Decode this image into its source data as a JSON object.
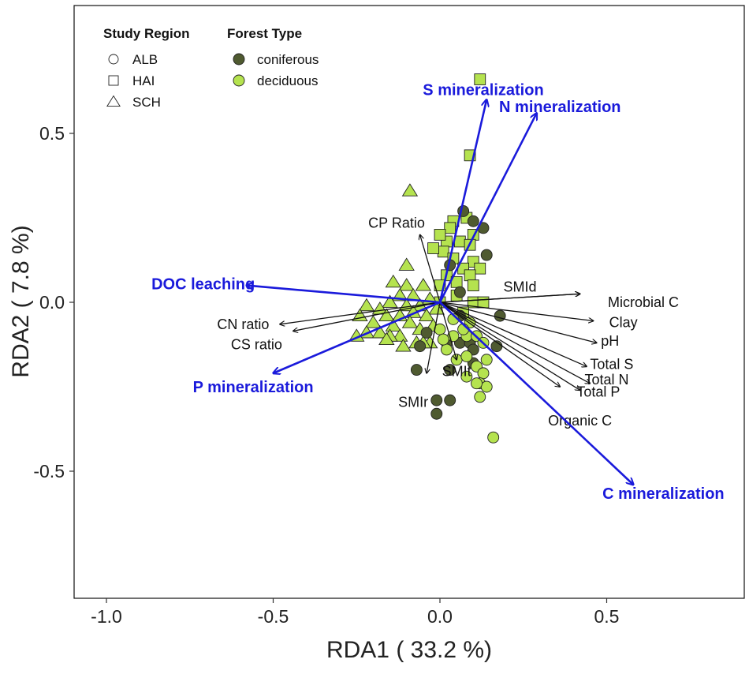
{
  "chart_data": {
    "type": "scatter",
    "subtype": "rda-biplot",
    "xlabel": "RDA1 ( 33.2 %)",
    "ylabel": "RDA2 ( 7.8 %)",
    "xlim": [
      -1.1,
      0.9
    ],
    "ylim": [
      -0.88,
      0.88
    ],
    "x_ticks": [
      {
        "value": -1.0,
        "label": "-1.0"
      },
      {
        "value": -0.5,
        "label": "-0.5"
      },
      {
        "value": 0.0,
        "label": "0.0"
      },
      {
        "value": 0.5,
        "label": "0.5"
      }
    ],
    "y_ticks": [
      {
        "value": 0.5,
        "label": "0.5"
      },
      {
        "value": 0.0,
        "label": "0.0"
      },
      {
        "value": -0.5,
        "label": "-0.5"
      }
    ],
    "legend": {
      "region_title": "Study Region",
      "regions": [
        {
          "shape": "circle",
          "label": "ALB"
        },
        {
          "shape": "square",
          "label": "HAI"
        },
        {
          "shape": "triangle",
          "label": "SCH"
        }
      ],
      "forest_title": "Forest Type",
      "forests": [
        {
          "key": "coniferous",
          "label": "coniferous",
          "color": "#4f5a30"
        },
        {
          "key": "deciduous",
          "label": "deciduous",
          "color": "#b5e34f"
        }
      ]
    },
    "response_arrows": [
      {
        "label": "S mineralization",
        "x": 0.14,
        "y": 0.6,
        "lx": 0.13,
        "ly": 0.63
      },
      {
        "label": "N mineralization",
        "x": 0.29,
        "y": 0.56,
        "lx": 0.36,
        "ly": 0.58
      },
      {
        "label": "DOC leaching",
        "x": -0.58,
        "y": 0.05,
        "lx": -0.71,
        "ly": 0.055
      },
      {
        "label": "P mineralization",
        "x": -0.5,
        "y": -0.21,
        "lx": -0.56,
        "ly": -0.25
      },
      {
        "label": "C mineralization",
        "x": 0.58,
        "y": -0.54,
        "lx": 0.67,
        "ly": -0.565
      }
    ],
    "explanatory_arrows": [
      {
        "label": "CP Ratio",
        "x": -0.06,
        "y": 0.2,
        "lx": -0.13,
        "ly": 0.235
      },
      {
        "label": "SMId",
        "x": 0.42,
        "y": 0.025,
        "lx": 0.24,
        "ly": 0.045
      },
      {
        "label": "Microbial C",
        "x": 0.42,
        "y": 0.025,
        "lx": 0.61,
        "ly": 0.0
      },
      {
        "label": "Clay",
        "x": 0.46,
        "y": -0.055,
        "lx": 0.55,
        "ly": -0.06
      },
      {
        "label": "pH",
        "x": 0.47,
        "y": -0.12,
        "lx": 0.51,
        "ly": -0.115
      },
      {
        "label": "Total S",
        "x": 0.44,
        "y": -0.19,
        "lx": 0.515,
        "ly": -0.183
      },
      {
        "label": "Total N",
        "x": 0.45,
        "y": -0.24,
        "lx": 0.5,
        "ly": -0.229
      },
      {
        "label": "Total P",
        "x": 0.42,
        "y": -0.26,
        "lx": 0.475,
        "ly": -0.265
      },
      {
        "label": "Organic C",
        "x": 0.36,
        "y": -0.25,
        "lx": 0.42,
        "ly": -0.35
      },
      {
        "label": "SMIr",
        "x": -0.04,
        "y": -0.21,
        "lx": -0.08,
        "ly": -0.295
      },
      {
        "label": "SMIt",
        "x": 0.05,
        "y": -0.17,
        "lx": 0.05,
        "ly": -0.205
      },
      {
        "label": "CN ratio",
        "x": -0.48,
        "y": -0.065,
        "lx": -0.59,
        "ly": -0.065
      },
      {
        "label": "CS ratio",
        "x": -0.44,
        "y": -0.085,
        "lx": -0.55,
        "ly": -0.125
      }
    ],
    "points": [
      {
        "x": 0.12,
        "y": 0.66,
        "s": "square",
        "f": "deciduous"
      },
      {
        "x": 0.09,
        "y": 0.435,
        "s": "square",
        "f": "deciduous"
      },
      {
        "x": -0.09,
        "y": 0.33,
        "s": "triangle",
        "f": "deciduous"
      },
      {
        "x": 0.04,
        "y": 0.24,
        "s": "square",
        "f": "deciduous"
      },
      {
        "x": 0.03,
        "y": 0.22,
        "s": "square",
        "f": "deciduous"
      },
      {
        "x": 0.08,
        "y": 0.25,
        "s": "square",
        "f": "deciduous"
      },
      {
        "x": 0.1,
        "y": 0.2,
        "s": "square",
        "f": "deciduous"
      },
      {
        "x": 0.06,
        "y": 0.18,
        "s": "square",
        "f": "deciduous"
      },
      {
        "x": 0.07,
        "y": 0.27,
        "s": "circle",
        "f": "coniferous"
      },
      {
        "x": 0.1,
        "y": 0.24,
        "s": "circle",
        "f": "coniferous"
      },
      {
        "x": 0.13,
        "y": 0.22,
        "s": "circle",
        "f": "coniferous"
      },
      {
        "x": 0.02,
        "y": 0.18,
        "s": "square",
        "f": "deciduous"
      },
      {
        "x": 0.01,
        "y": 0.15,
        "s": "square",
        "f": "deciduous"
      },
      {
        "x": 0.09,
        "y": 0.17,
        "s": "square",
        "f": "deciduous"
      },
      {
        "x": 0.04,
        "y": 0.13,
        "s": "square",
        "f": "deciduous"
      },
      {
        "x": 0.1,
        "y": 0.12,
        "s": "square",
        "f": "deciduous"
      },
      {
        "x": 0.07,
        "y": 0.1,
        "s": "square",
        "f": "deciduous"
      },
      {
        "x": 0.12,
        "y": 0.1,
        "s": "square",
        "f": "deciduous"
      },
      {
        "x": 0.02,
        "y": 0.08,
        "s": "square",
        "f": "deciduous"
      },
      {
        "x": 0.09,
        "y": 0.08,
        "s": "square",
        "f": "deciduous"
      },
      {
        "x": 0.05,
        "y": 0.06,
        "s": "square",
        "f": "deciduous"
      },
      {
        "x": 0.1,
        "y": 0.05,
        "s": "square",
        "f": "deciduous"
      },
      {
        "x": 0.0,
        "y": 0.05,
        "s": "square",
        "f": "deciduous"
      },
      {
        "x": 0.05,
        "y": 0.02,
        "s": "square",
        "f": "deciduous"
      },
      {
        "x": 0.1,
        "y": 0.0,
        "s": "square",
        "f": "deciduous"
      },
      {
        "x": 0.13,
        "y": 0.0,
        "s": "square",
        "f": "deciduous"
      },
      {
        "x": 0.0,
        "y": 0.0,
        "s": "square",
        "f": "deciduous"
      },
      {
        "x": 0.07,
        "y": -0.03,
        "s": "square",
        "f": "deciduous"
      },
      {
        "x": 0.03,
        "y": 0.11,
        "s": "circle",
        "f": "coniferous"
      },
      {
        "x": 0.06,
        "y": 0.03,
        "s": "circle",
        "f": "coniferous"
      },
      {
        "x": 0.14,
        "y": 0.14,
        "s": "circle",
        "f": "coniferous"
      },
      {
        "x": 0.0,
        "y": 0.2,
        "s": "square",
        "f": "deciduous"
      },
      {
        "x": -0.02,
        "y": 0.16,
        "s": "square",
        "f": "deciduous"
      },
      {
        "x": -0.1,
        "y": 0.11,
        "s": "triangle",
        "f": "deciduous"
      },
      {
        "x": -0.14,
        "y": 0.06,
        "s": "triangle",
        "f": "deciduous"
      },
      {
        "x": -0.1,
        "y": 0.05,
        "s": "triangle",
        "f": "deciduous"
      },
      {
        "x": -0.05,
        "y": 0.05,
        "s": "triangle",
        "f": "deciduous"
      },
      {
        "x": -0.12,
        "y": 0.02,
        "s": "triangle",
        "f": "deciduous"
      },
      {
        "x": -0.08,
        "y": 0.02,
        "s": "triangle",
        "f": "deciduous"
      },
      {
        "x": -0.03,
        "y": 0.01,
        "s": "triangle",
        "f": "deciduous"
      },
      {
        "x": -0.15,
        "y": 0.0,
        "s": "triangle",
        "f": "deciduous"
      },
      {
        "x": -0.22,
        "y": -0.01,
        "s": "triangle",
        "f": "deciduous"
      },
      {
        "x": -0.18,
        "y": -0.02,
        "s": "triangle",
        "f": "deciduous"
      },
      {
        "x": -0.1,
        "y": -0.01,
        "s": "triangle",
        "f": "deciduous"
      },
      {
        "x": -0.06,
        "y": -0.01,
        "s": "triangle",
        "f": "deciduous"
      },
      {
        "x": -0.01,
        "y": -0.02,
        "s": "triangle",
        "f": "deciduous"
      },
      {
        "x": -0.24,
        "y": -0.04,
        "s": "triangle",
        "f": "deciduous"
      },
      {
        "x": -0.16,
        "y": -0.04,
        "s": "triangle",
        "f": "deciduous"
      },
      {
        "x": -0.12,
        "y": -0.04,
        "s": "triangle",
        "f": "deciduous"
      },
      {
        "x": -0.08,
        "y": -0.03,
        "s": "triangle",
        "f": "deciduous"
      },
      {
        "x": -0.04,
        "y": -0.04,
        "s": "triangle",
        "f": "deciduous"
      },
      {
        "x": -0.2,
        "y": -0.06,
        "s": "triangle",
        "f": "deciduous"
      },
      {
        "x": -0.14,
        "y": -0.07,
        "s": "triangle",
        "f": "deciduous"
      },
      {
        "x": -0.09,
        "y": -0.06,
        "s": "triangle",
        "f": "deciduous"
      },
      {
        "x": -0.06,
        "y": -0.08,
        "s": "triangle",
        "f": "deciduous"
      },
      {
        "x": -0.02,
        "y": -0.07,
        "s": "triangle",
        "f": "deciduous"
      },
      {
        "x": -0.22,
        "y": -0.09,
        "s": "triangle",
        "f": "deciduous"
      },
      {
        "x": -0.18,
        "y": -0.09,
        "s": "triangle",
        "f": "deciduous"
      },
      {
        "x": -0.12,
        "y": -0.1,
        "s": "triangle",
        "f": "deciduous"
      },
      {
        "x": -0.25,
        "y": -0.1,
        "s": "triangle",
        "f": "deciduous"
      },
      {
        "x": -0.15,
        "y": -0.1,
        "s": "triangle",
        "f": "deciduous"
      },
      {
        "x": -0.07,
        "y": -0.12,
        "s": "triangle",
        "f": "deciduous"
      },
      {
        "x": -0.03,
        "y": -0.12,
        "s": "triangle",
        "f": "deciduous"
      },
      {
        "x": -0.16,
        "y": -0.11,
        "s": "triangle",
        "f": "deciduous"
      },
      {
        "x": -0.11,
        "y": -0.13,
        "s": "triangle",
        "f": "deciduous"
      },
      {
        "x": -0.05,
        "y": -0.12,
        "s": "triangle",
        "f": "deciduous"
      },
      {
        "x": -0.04,
        "y": -0.09,
        "s": "circle",
        "f": "coniferous"
      },
      {
        "x": -0.06,
        "y": -0.13,
        "s": "circle",
        "f": "coniferous"
      },
      {
        "x": -0.07,
        "y": -0.2,
        "s": "circle",
        "f": "coniferous"
      },
      {
        "x": 0.02,
        "y": -0.12,
        "s": "circle",
        "f": "coniferous"
      },
      {
        "x": 0.06,
        "y": -0.12,
        "s": "circle",
        "f": "coniferous"
      },
      {
        "x": 0.03,
        "y": -0.2,
        "s": "circle",
        "f": "coniferous"
      },
      {
        "x": 0.09,
        "y": -0.12,
        "s": "circle",
        "f": "coniferous"
      },
      {
        "x": 0.17,
        "y": -0.13,
        "s": "circle",
        "f": "coniferous"
      },
      {
        "x": 0.18,
        "y": -0.04,
        "s": "circle",
        "f": "coniferous"
      },
      {
        "x": 0.06,
        "y": -0.04,
        "s": "circle",
        "f": "coniferous"
      },
      {
        "x": 0.1,
        "y": -0.14,
        "s": "circle",
        "f": "coniferous"
      },
      {
        "x": 0.1,
        "y": -0.18,
        "s": "circle",
        "f": "coniferous"
      },
      {
        "x": -0.01,
        "y": -0.29,
        "s": "circle",
        "f": "coniferous"
      },
      {
        "x": 0.03,
        "y": -0.29,
        "s": "circle",
        "f": "coniferous"
      },
      {
        "x": -0.01,
        "y": -0.33,
        "s": "circle",
        "f": "coniferous"
      },
      {
        "x": 0.0,
        "y": -0.08,
        "s": "circle",
        "f": "deciduous"
      },
      {
        "x": 0.04,
        "y": -0.1,
        "s": "circle",
        "f": "deciduous"
      },
      {
        "x": 0.08,
        "y": -0.1,
        "s": "circle",
        "f": "deciduous"
      },
      {
        "x": 0.11,
        "y": -0.1,
        "s": "circle",
        "f": "deciduous"
      },
      {
        "x": 0.13,
        "y": -0.12,
        "s": "circle",
        "f": "deciduous"
      },
      {
        "x": 0.02,
        "y": -0.14,
        "s": "circle",
        "f": "deciduous"
      },
      {
        "x": 0.05,
        "y": -0.17,
        "s": "circle",
        "f": "deciduous"
      },
      {
        "x": 0.08,
        "y": -0.16,
        "s": "circle",
        "f": "deciduous"
      },
      {
        "x": 0.11,
        "y": -0.19,
        "s": "circle",
        "f": "deciduous"
      },
      {
        "x": 0.14,
        "y": -0.17,
        "s": "circle",
        "f": "deciduous"
      },
      {
        "x": 0.13,
        "y": -0.21,
        "s": "circle",
        "f": "deciduous"
      },
      {
        "x": 0.08,
        "y": -0.22,
        "s": "circle",
        "f": "deciduous"
      },
      {
        "x": 0.12,
        "y": -0.24,
        "s": "circle",
        "f": "deciduous"
      },
      {
        "x": 0.14,
        "y": -0.25,
        "s": "circle",
        "f": "deciduous"
      },
      {
        "x": 0.12,
        "y": -0.28,
        "s": "circle",
        "f": "deciduous"
      },
      {
        "x": 0.11,
        "y": -0.24,
        "s": "circle",
        "f": "deciduous"
      },
      {
        "x": 0.16,
        "y": -0.4,
        "s": "circle",
        "f": "deciduous"
      },
      {
        "x": 0.04,
        "y": -0.05,
        "s": "circle",
        "f": "deciduous"
      },
      {
        "x": 0.09,
        "y": -0.06,
        "s": "circle",
        "f": "deciduous"
      },
      {
        "x": 0.01,
        "y": -0.11,
        "s": "circle",
        "f": "deciduous"
      },
      {
        "x": 0.07,
        "y": -0.08,
        "s": "circle",
        "f": "deciduous"
      }
    ]
  }
}
